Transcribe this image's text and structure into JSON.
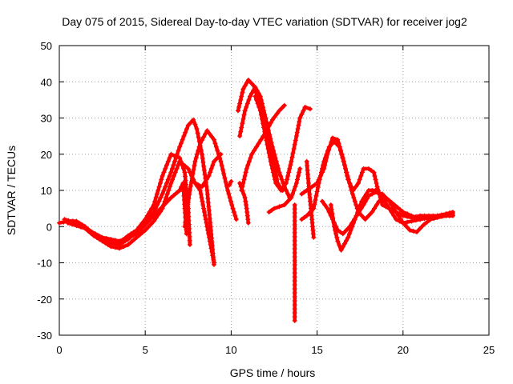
{
  "chart_data": {
    "type": "scatter",
    "title": "Day 075 of 2015, Sidereal Day-to-day VTEC variation (SDTVAR) for receiver jog2",
    "xlabel": "GPS time / hours",
    "ylabel": "SDTVAR / TECUs",
    "xlim": [
      0,
      25
    ],
    "ylim": [
      -30,
      50
    ],
    "xticks": [
      0,
      5,
      10,
      15,
      20,
      25
    ],
    "yticks": [
      -30,
      -20,
      -10,
      0,
      10,
      20,
      30,
      40,
      50
    ],
    "grid": true,
    "marker": "+",
    "color": "#ff0000",
    "series": [
      {
        "name": "s1",
        "points": [
          [
            0,
            1
          ],
          [
            0.5,
            1.5
          ],
          [
            1,
            1.5
          ],
          [
            1.5,
            0
          ],
          [
            2,
            -2
          ],
          [
            2.5,
            -3.5
          ],
          [
            3,
            -4.5
          ],
          [
            3.5,
            -5
          ],
          [
            4,
            -3.5
          ],
          [
            4.5,
            -1.5
          ],
          [
            5,
            1
          ],
          [
            5.5,
            4
          ],
          [
            6,
            9
          ],
          [
            6.5,
            15
          ],
          [
            7,
            22
          ],
          [
            7.5,
            28
          ],
          [
            7.8,
            29.5
          ],
          [
            8,
            27
          ],
          [
            8.3,
            20
          ],
          [
            8.6,
            10
          ],
          [
            8.8,
            0
          ],
          [
            9,
            -10.5
          ]
        ]
      },
      {
        "name": "s2",
        "points": [
          [
            0.3,
            2
          ],
          [
            1,
            1
          ],
          [
            1.5,
            -0.5
          ],
          [
            2,
            -2.5
          ],
          [
            2.5,
            -4
          ],
          [
            3,
            -5.5
          ],
          [
            3.5,
            -6
          ],
          [
            4,
            -5
          ],
          [
            4.5,
            -3
          ],
          [
            5,
            -1
          ],
          [
            5.5,
            1.5
          ],
          [
            6,
            5
          ],
          [
            6.5,
            12
          ],
          [
            7,
            18
          ],
          [
            7.5,
            16
          ],
          [
            7.9,
            12
          ],
          [
            8.3,
            11
          ],
          [
            8.7,
            14
          ],
          [
            9,
            18
          ],
          [
            9.4,
            20
          ]
        ]
      },
      {
        "name": "s3",
        "points": [
          [
            0.8,
            1.5
          ],
          [
            1.5,
            -0.5
          ],
          [
            2,
            -2
          ],
          [
            2.5,
            -3.5
          ],
          [
            3,
            -4
          ],
          [
            3.5,
            -4.5
          ],
          [
            4,
            -2.5
          ],
          [
            4.5,
            -1
          ],
          [
            5,
            2
          ],
          [
            5.5,
            6
          ],
          [
            6,
            14
          ],
          [
            6.5,
            20
          ],
          [
            7,
            19
          ],
          [
            7.3,
            15
          ],
          [
            7.5,
            5
          ],
          [
            7.6,
            -5
          ]
        ]
      },
      {
        "name": "s4",
        "points": [
          [
            0.5,
            1
          ],
          [
            1.5,
            -0.5
          ],
          [
            2.5,
            -3
          ],
          [
            3.5,
            -4
          ],
          [
            4.5,
            -2
          ],
          [
            5.5,
            3
          ],
          [
            6.5,
            8
          ],
          [
            7,
            10
          ],
          [
            7.2,
            12
          ],
          [
            7.3,
            5
          ],
          [
            7.4,
            -2
          ]
        ]
      },
      {
        "name": "s5",
        "points": [
          [
            7.3,
            0
          ],
          [
            7.6,
            10
          ],
          [
            7.9,
            18
          ],
          [
            8.2,
            23
          ],
          [
            8.6,
            26.5
          ],
          [
            9,
            24
          ],
          [
            9.4,
            18
          ],
          [
            9.8,
            10
          ],
          [
            10.1,
            5
          ],
          [
            10.3,
            2
          ]
        ]
      },
      {
        "name": "s6",
        "points": [
          [
            7.9,
            12
          ],
          [
            8.2,
            10
          ],
          [
            8.4,
            5
          ],
          [
            8.6,
            0
          ],
          [
            8.8,
            -5
          ],
          [
            9,
            -10
          ]
        ]
      },
      {
        "name": "s7",
        "points": [
          [
            10.4,
            32
          ],
          [
            10.7,
            38
          ],
          [
            11,
            40.5
          ],
          [
            11.3,
            39
          ],
          [
            11.6,
            35
          ],
          [
            12,
            30
          ],
          [
            12.4,
            22
          ],
          [
            12.8,
            15
          ],
          [
            13.1,
            11
          ],
          [
            13.4,
            8
          ]
        ]
      },
      {
        "name": "s8",
        "points": [
          [
            10.5,
            25
          ],
          [
            10.8,
            32
          ],
          [
            11.1,
            36
          ],
          [
            11.4,
            38.5
          ],
          [
            11.7,
            36
          ],
          [
            12,
            30
          ],
          [
            12.4,
            20
          ],
          [
            12.7,
            12
          ],
          [
            13,
            10
          ]
        ]
      },
      {
        "name": "s9",
        "points": [
          [
            10.6,
            10
          ],
          [
            10.9,
            16
          ],
          [
            11.2,
            20
          ],
          [
            11.6,
            23
          ],
          [
            12,
            26
          ],
          [
            12.4,
            29.5
          ],
          [
            12.8,
            32
          ],
          [
            13.1,
            33.5
          ]
        ]
      },
      {
        "name": "s10",
        "points": [
          [
            11.4,
            36
          ],
          [
            11.7,
            32
          ],
          [
            12,
            25
          ],
          [
            12.3,
            18
          ],
          [
            12.6,
            12
          ],
          [
            12.9,
            10
          ],
          [
            13.2,
            12
          ],
          [
            13.5,
            18
          ],
          [
            13.8,
            25
          ],
          [
            14,
            30
          ],
          [
            14.3,
            33
          ],
          [
            14.6,
            32.5
          ]
        ]
      },
      {
        "name": "s11",
        "points": [
          [
            12.2,
            4
          ],
          [
            12.5,
            5
          ],
          [
            12.8,
            5.5
          ],
          [
            13.1,
            6
          ],
          [
            13.5,
            8
          ],
          [
            13.8,
            12
          ],
          [
            14,
            16
          ]
        ]
      },
      {
        "name": "s12",
        "points": [
          [
            10.5,
            12
          ],
          [
            10.8,
            8
          ],
          [
            10.9,
            5
          ],
          [
            11,
            1
          ]
        ]
      },
      {
        "name": "s13",
        "points": [
          [
            9.9,
            11.5
          ],
          [
            10,
            12.5
          ]
        ]
      },
      {
        "name": "s14",
        "points": [
          [
            13.7,
            6
          ],
          [
            13.7,
            -5
          ],
          [
            13.7,
            -15
          ],
          [
            13.7,
            -26
          ]
        ]
      },
      {
        "name": "s15",
        "points": [
          [
            14.4,
            18
          ],
          [
            14.5,
            12
          ],
          [
            14.6,
            7
          ],
          [
            14.7,
            2
          ],
          [
            14.8,
            -3
          ]
        ]
      },
      {
        "name": "s16",
        "points": [
          [
            14.1,
            9
          ],
          [
            14.4,
            10
          ],
          [
            14.7,
            11
          ],
          [
            15,
            12
          ],
          [
            15.2,
            14
          ],
          [
            15.4,
            16
          ],
          [
            15.6,
            20
          ],
          [
            15.9,
            24.5
          ],
          [
            16.2,
            24
          ],
          [
            16.5,
            19
          ],
          [
            16.8,
            13
          ],
          [
            17.1,
            10
          ],
          [
            17.4,
            12
          ],
          [
            17.7,
            16
          ],
          [
            18,
            16
          ],
          [
            18.3,
            15
          ],
          [
            18.5,
            11
          ],
          [
            18.8,
            6
          ],
          [
            19.2,
            5
          ],
          [
            19.6,
            4
          ],
          [
            20,
            3
          ],
          [
            20.5,
            2.5
          ],
          [
            21,
            3
          ],
          [
            21.5,
            3
          ],
          [
            22,
            3
          ],
          [
            22.5,
            3.5
          ],
          [
            22.9,
            4
          ]
        ]
      },
      {
        "name": "s17",
        "points": [
          [
            14.1,
            2
          ],
          [
            14.4,
            3
          ],
          [
            14.8,
            5
          ],
          [
            15.1,
            12
          ],
          [
            15.4,
            18
          ],
          [
            15.7,
            22
          ],
          [
            16,
            23.5
          ],
          [
            16.3,
            22
          ],
          [
            16.6,
            17
          ],
          [
            17,
            10
          ],
          [
            17.4,
            4
          ],
          [
            17.8,
            2
          ],
          [
            18.2,
            4
          ],
          [
            18.6,
            7
          ],
          [
            19,
            8
          ],
          [
            19.5,
            6
          ],
          [
            20,
            4
          ],
          [
            20.5,
            3
          ],
          [
            21,
            2
          ],
          [
            21.5,
            2.5
          ],
          [
            22,
            3
          ],
          [
            22.5,
            3.5
          ],
          [
            22.9,
            3.5
          ]
        ]
      },
      {
        "name": "s18",
        "points": [
          [
            15.3,
            7
          ],
          [
            15.6,
            5
          ],
          [
            15.9,
            2
          ],
          [
            16.2,
            -1
          ],
          [
            16.5,
            -2
          ],
          [
            16.9,
            0
          ],
          [
            17.3,
            3
          ],
          [
            17.7,
            6
          ],
          [
            18,
            8.5
          ],
          [
            18.4,
            9.5
          ],
          [
            18.8,
            9
          ],
          [
            19.2,
            7
          ],
          [
            19.6,
            4
          ],
          [
            20,
            1
          ],
          [
            20.4,
            -1
          ],
          [
            20.8,
            -1.5
          ],
          [
            21.2,
            0.5
          ],
          [
            21.6,
            2
          ],
          [
            22,
            2.5
          ],
          [
            22.5,
            3
          ],
          [
            22.9,
            3
          ]
        ]
      },
      {
        "name": "s19",
        "points": [
          [
            15.8,
            6
          ],
          [
            16,
            0
          ],
          [
            16.2,
            -4
          ],
          [
            16.4,
            -6.5
          ],
          [
            16.8,
            -3
          ],
          [
            17.2,
            2
          ],
          [
            17.6,
            7
          ],
          [
            18,
            10
          ],
          [
            18.4,
            10
          ],
          [
            18.8,
            8
          ],
          [
            19.2,
            5
          ],
          [
            19.6,
            2
          ],
          [
            20,
            1
          ],
          [
            20.5,
            1.5
          ],
          [
            21,
            2
          ],
          [
            21.5,
            2.5
          ],
          [
            22,
            2.5
          ]
        ]
      }
    ]
  }
}
